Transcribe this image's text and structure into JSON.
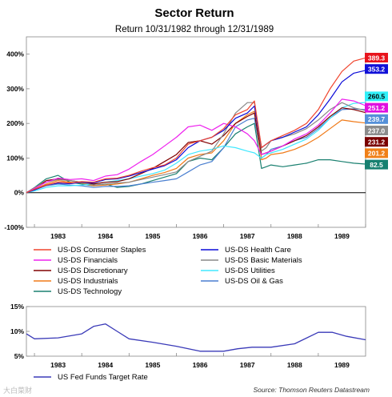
{
  "chart_data": [
    {
      "type": "line",
      "title": "Sector Return",
      "subtitle": "Return 10/31/1982 through 12/31/1989",
      "x_ticks": [
        "1983",
        "1984",
        "1985",
        "1986",
        "1987",
        "1988",
        "1989"
      ],
      "y_ticks": [
        "400%",
        "300%",
        "200%",
        "100%",
        "0%",
        "-100%"
      ],
      "ylim": [
        -100,
        450
      ],
      "xlim": [
        1982.83,
        1990.0
      ],
      "grid": false,
      "legend_position": "bottom",
      "x": [
        1982.83,
        1983.0,
        1983.25,
        1983.5,
        1983.75,
        1984.0,
        1984.25,
        1984.5,
        1984.75,
        1985.0,
        1985.25,
        1985.5,
        1985.75,
        1986.0,
        1986.25,
        1986.5,
        1986.75,
        1987.0,
        1987.25,
        1987.5,
        1987.65,
        1987.8,
        1987.9,
        1988.0,
        1988.25,
        1988.5,
        1988.75,
        1989.0,
        1989.25,
        1989.5,
        1989.75,
        1990.0
      ],
      "series": [
        {
          "name": "US-DS Consumer Staples",
          "color": "#f0452e",
          "end_label": "389.3",
          "label_bg": "#e8141c",
          "values": [
            0,
            10,
            22,
            30,
            28,
            32,
            30,
            40,
            42,
            50,
            62,
            72,
            80,
            100,
            140,
            150,
            160,
            185,
            225,
            240,
            265,
            130,
            140,
            150,
            165,
            180,
            200,
            240,
            300,
            350,
            380,
            389.3
          ]
        },
        {
          "name": "US-DS Health Care",
          "color": "#0a0ad8",
          "end_label": "353.2",
          "label_bg": "#1010d8",
          "values": [
            0,
            8,
            22,
            28,
            26,
            30,
            28,
            38,
            40,
            48,
            58,
            68,
            78,
            95,
            130,
            150,
            160,
            180,
            215,
            230,
            250,
            130,
            140,
            150,
            160,
            175,
            190,
            225,
            270,
            320,
            345,
            353.2
          ]
        },
        {
          "name": "US-DS Financials",
          "color": "#ee22ee",
          "end_label": "251.2",
          "label_bg": "#e010e0",
          "values": [
            0,
            12,
            30,
            42,
            38,
            40,
            35,
            48,
            52,
            68,
            90,
            110,
            135,
            160,
            190,
            195,
            180,
            200,
            190,
            170,
            150,
            110,
            115,
            120,
            135,
            155,
            170,
            195,
            230,
            270,
            265,
            251.2
          ]
        },
        {
          "name": "US-DS Basic Materials",
          "color": "#888888",
          "end_label": "237.0",
          "label_bg": "#8c8c8c",
          "values": [
            0,
            15,
            30,
            38,
            35,
            30,
            22,
            25,
            28,
            30,
            38,
            45,
            52,
            60,
            90,
            105,
            120,
            170,
            230,
            260,
            260,
            120,
            130,
            150,
            160,
            170,
            185,
            210,
            240,
            260,
            245,
            237.0
          ]
        },
        {
          "name": "US-DS Discretionary",
          "color": "#800000",
          "end_label": "231.2",
          "label_bg": "#7a0000",
          "values": [
            0,
            12,
            35,
            40,
            35,
            30,
            25,
            30,
            32,
            40,
            55,
            70,
            90,
            110,
            145,
            150,
            140,
            165,
            200,
            220,
            230,
            110,
            115,
            120,
            135,
            150,
            165,
            190,
            220,
            245,
            240,
            231.2
          ]
        },
        {
          "name": "US-DS Utilities",
          "color": "#40e8ff",
          "end_label": "260.5",
          "label_bg": "#30f0f8",
          "values": [
            0,
            5,
            15,
            20,
            20,
            22,
            25,
            30,
            35,
            40,
            48,
            55,
            65,
            85,
            110,
            120,
            125,
            135,
            130,
            120,
            115,
            100,
            110,
            115,
            125,
            140,
            155,
            180,
            215,
            245,
            258,
            260.5
          ]
        },
        {
          "name": "US-DS Industrials",
          "color": "#f07a18",
          "end_label": "201.2",
          "label_bg": "#f08018",
          "values": [
            0,
            10,
            25,
            35,
            30,
            28,
            20,
            22,
            25,
            30,
            40,
            50,
            58,
            70,
            100,
            110,
            115,
            150,
            200,
            225,
            235,
            95,
            100,
            110,
            115,
            125,
            140,
            160,
            185,
            210,
            205,
            201.2
          ]
        },
        {
          "name": "US-DS Oil & Gas",
          "color": "#4a7fd0",
          "end_label": "239.7",
          "label_bg": "#5590d8",
          "values": [
            0,
            8,
            20,
            25,
            22,
            20,
            15,
            18,
            18,
            20,
            25,
            30,
            35,
            40,
            60,
            80,
            90,
            130,
            190,
            210,
            215,
            100,
            110,
            125,
            135,
            150,
            160,
            185,
            215,
            240,
            242,
            239.7
          ]
        },
        {
          "name": "US-DS Technology",
          "color": "#1a8070",
          "end_label": "82.5",
          "label_bg": "#168070",
          "values": [
            0,
            15,
            40,
            50,
            30,
            25,
            20,
            25,
            15,
            18,
            25,
            35,
            45,
            55,
            90,
            100,
            95,
            130,
            170,
            190,
            200,
            70,
            75,
            80,
            75,
            80,
            85,
            95,
            95,
            90,
            85,
            82.5
          ]
        }
      ]
    },
    {
      "type": "line",
      "title": "",
      "x_ticks": [
        "1983",
        "1984",
        "1985",
        "1986",
        "1987",
        "1988",
        "1989"
      ],
      "y_ticks": [
        "15%",
        "10%",
        "5%"
      ],
      "ylim": [
        5,
        15
      ],
      "xlim": [
        1982.83,
        1990.0
      ],
      "legend_position": "bottom",
      "x": [
        1982.83,
        1983.0,
        1983.5,
        1984.0,
        1984.25,
        1984.5,
        1984.75,
        1985.0,
        1985.5,
        1986.0,
        1986.5,
        1987.0,
        1987.3,
        1987.6,
        1988.0,
        1988.5,
        1989.0,
        1989.3,
        1989.6,
        1990.0
      ],
      "series": [
        {
          "name": "US Fed Funds Target Rate",
          "color": "#3a3ab8",
          "values": [
            9.5,
            8.5,
            8.7,
            9.5,
            11.0,
            11.5,
            10.0,
            8.5,
            7.8,
            7.0,
            6.0,
            6.0,
            6.5,
            6.8,
            6.8,
            7.5,
            9.8,
            9.8,
            9.0,
            8.3
          ]
        }
      ]
    }
  ],
  "source": "Source: Thomson Reuters Datastream",
  "watermark": "大白菜财"
}
